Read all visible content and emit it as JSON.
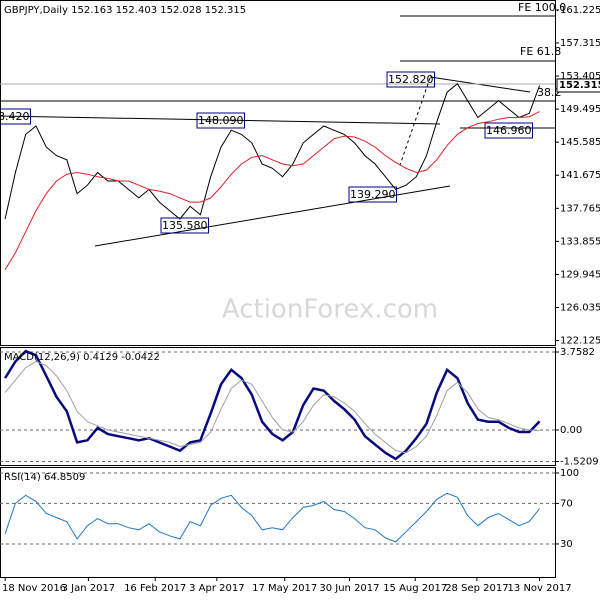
{
  "chart_data": [
    {
      "type": "line",
      "title": "GBPJPY,Daily  152.163 152.403 152.028 152.315",
      "watermark": "ActionForex.com",
      "last_price": "152.315",
      "xlim": [
        -0.5,
        53.5
      ],
      "ylim": [
        121.6,
        162.4
      ],
      "yticks": [
        161.225,
        157.315,
        153.405,
        149.495,
        145.585,
        141.675,
        137.765,
        133.855,
        129.945,
        126.035,
        122.125
      ],
      "annotations": [
        "8.420",
        "148.090",
        "135.580",
        "139.290",
        "152.820",
        "146.960",
        "38.2",
        "FE 61.8",
        "FE 100.0"
      ],
      "series": [
        {
          "color": "#000000",
          "values": [
            136.5,
            142,
            146.5,
            147.5,
            145,
            144,
            143.5,
            139.5,
            140.5,
            142,
            141,
            141,
            140,
            139,
            140,
            138.5,
            137.5,
            136.5,
            138,
            137,
            141.5,
            145,
            147,
            146.5,
            145.5,
            143,
            142.5,
            141.5,
            143,
            145.5,
            146.5,
            147.5,
            147,
            146.5,
            145.5,
            144,
            143,
            141.5,
            140,
            140.5,
            141.5,
            144,
            148,
            151.5,
            152.5,
            150.5,
            148.5,
            149.5,
            150.5,
            149.5,
            148.5,
            149,
            152.3
          ]
        },
        {
          "color": "#e0202a",
          "values": [
            130.5,
            132.5,
            135,
            137.5,
            139.5,
            141,
            141.8,
            142,
            141.8,
            141.5,
            141.3,
            141,
            141,
            140.5,
            140,
            139.8,
            139.5,
            139,
            138.5,
            138.5,
            139,
            140.3,
            141.8,
            143,
            143.8,
            144,
            143.5,
            143,
            142.8,
            143,
            144,
            145,
            146,
            146.3,
            146.2,
            145.7,
            145,
            144,
            143.2,
            142.5,
            142,
            142.3,
            143.5,
            145.2,
            146.5,
            147.3,
            147.8,
            148,
            148.3,
            148.5,
            148.5,
            148.6,
            149.2
          ]
        }
      ]
    },
    {
      "type": "line",
      "title": "MACD(12,26,9) 0.4129 -0.0422",
      "xlim": [
        -0.5,
        53.5
      ],
      "ylim": [
        -1.69,
        4.0
      ],
      "yticks": [
        3.7582,
        {
          "value": 0,
          "label": "0.00"
        },
        -1.5209
      ],
      "series": [
        {
          "color": "#0a0a80",
          "values": [
            2.5,
            3.3,
            3.8,
            3.6,
            2.6,
            1.6,
            0.9,
            -0.6,
            -0.5,
            0.1,
            -0.2,
            -0.3,
            -0.4,
            -0.5,
            -0.4,
            -0.6,
            -0.8,
            -1.0,
            -0.6,
            -0.5,
            0.8,
            2.2,
            2.9,
            2.5,
            1.7,
            0.4,
            -0.2,
            -0.5,
            -0.1,
            1.2,
            2.0,
            1.9,
            1.4,
            1.0,
            0.5,
            -0.3,
            -0.7,
            -1.1,
            -1.4,
            -1.0,
            -0.4,
            0.3,
            1.8,
            2.9,
            2.5,
            1.3,
            0.5,
            0.4,
            0.4,
            0.1,
            -0.1,
            -0.1,
            0.41
          ]
        },
        {
          "color": "#a0a0a0",
          "values": [
            1.8,
            2.4,
            3.0,
            3.3,
            3.1,
            2.6,
            1.9,
            0.9,
            0.4,
            0.2,
            0.0,
            -0.1,
            -0.2,
            -0.3,
            -0.4,
            -0.5,
            -0.6,
            -0.8,
            -0.7,
            -0.6,
            -0.1,
            1.0,
            2.0,
            2.4,
            2.2,
            1.4,
            0.6,
            0.0,
            -0.1,
            0.4,
            1.2,
            1.7,
            1.6,
            1.3,
            0.9,
            0.3,
            -0.2,
            -0.6,
            -1.0,
            -1.1,
            -0.8,
            -0.3,
            0.7,
            1.9,
            2.3,
            1.8,
            1.0,
            0.6,
            0.5,
            0.3,
            0.1,
            0.0,
            -0.04
          ]
        }
      ]
    },
    {
      "type": "line",
      "title": "RSI(14) 64.8509",
      "xlim": [
        -0.5,
        53.5
      ],
      "ylim": [
        -2.6,
        105.9
      ],
      "yticks": [
        100,
        70,
        30
      ],
      "xticks": [
        {
          "value": 0,
          "label": "18 Nov 2016"
        },
        {
          "value": 8.1,
          "label": "3 Jan 2017"
        },
        {
          "value": 14.6,
          "label": "16 Feb 2017"
        },
        {
          "value": 20.6,
          "label": "3 Apr 2017"
        },
        {
          "value": 27.2,
          "label": "17 May 2017"
        },
        {
          "value": 33.5,
          "label": "30 Jun 2017"
        },
        {
          "value": 39.9,
          "label": "15 Aug 2017"
        },
        {
          "value": 45.9,
          "label": "28 Sep 2017"
        },
        {
          "value": 52.0,
          "label": "13 Nov 2017"
        }
      ],
      "series": [
        {
          "color": "#1e78c8",
          "values": [
            40,
            70,
            78,
            72,
            60,
            56,
            52,
            35,
            48,
            55,
            50,
            50,
            46,
            44,
            50,
            42,
            38,
            35,
            52,
            48,
            68,
            75,
            78,
            66,
            58,
            44,
            46,
            44,
            56,
            66,
            68,
            72,
            64,
            62,
            55,
            46,
            44,
            36,
            32,
            42,
            52,
            62,
            74,
            80,
            76,
            58,
            48,
            56,
            60,
            54,
            48,
            52,
            64.85
          ]
        }
      ]
    }
  ]
}
